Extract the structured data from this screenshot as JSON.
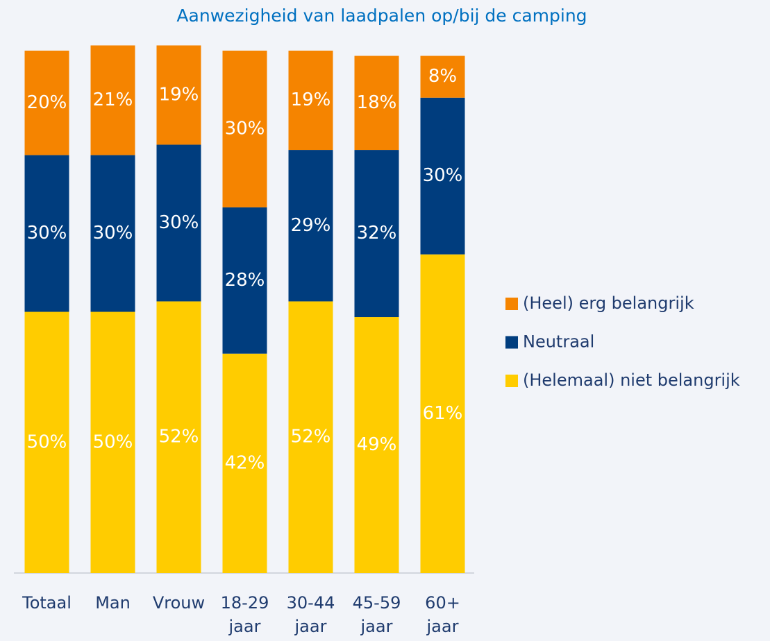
{
  "chart_data": {
    "type": "stacked_bar",
    "title": "Aanwezigheid van laadpalen op/bij de camping",
    "categories": [
      "Totaal",
      "Man",
      "Vrouw",
      "18-29 jaar",
      "30-44 jaar",
      "45-59 jaar",
      "60+ jaar"
    ],
    "series": [
      {
        "name": "(Helemaal) niet belangrijk",
        "color": "#ffcc00",
        "values": [
          50,
          50,
          52,
          42,
          52,
          49,
          61
        ],
        "value_labels": [
          "50%",
          "50%",
          "52%",
          "42%",
          "52%",
          "49%",
          "61%"
        ]
      },
      {
        "name": "Neutraal",
        "color": "#003d7e",
        "values": [
          30,
          30,
          30,
          28,
          29,
          32,
          30
        ],
        "value_labels": [
          "30%",
          "30%",
          "30%",
          "28%",
          "29%",
          "32%",
          "30%"
        ]
      },
      {
        "name": "(Heel) erg belangrijk",
        "color": "#f58400",
        "values": [
          20,
          21,
          19,
          30,
          19,
          18,
          8
        ],
        "value_labels": [
          "20%",
          "21%",
          "19%",
          "30%",
          "19%",
          "18%",
          "8%"
        ]
      }
    ],
    "ylim": [
      0,
      100
    ],
    "legend": "right"
  }
}
